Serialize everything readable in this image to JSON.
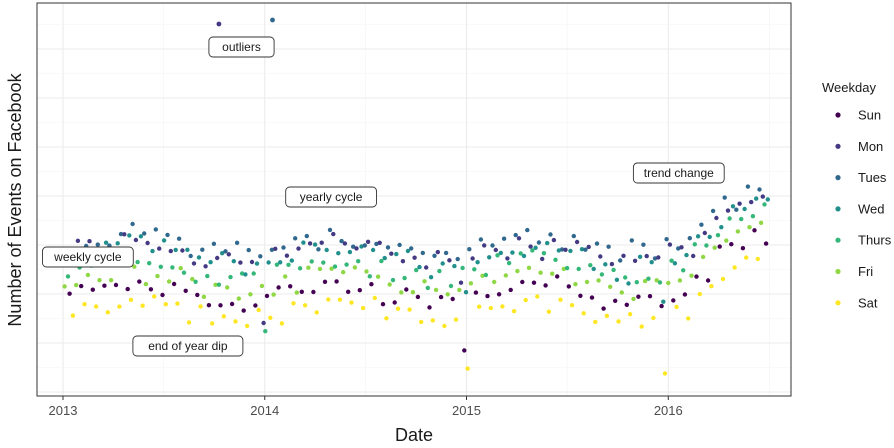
{
  "chart_data": {
    "type": "scatter",
    "title": "",
    "xlabel": "Date",
    "ylabel": "Number of Events on Facebook",
    "xlim": [
      "2012-11-15",
      "2016-08-10"
    ],
    "x_ticks": [
      "2013",
      "2014",
      "2015",
      "2016"
    ],
    "y_tick_labels_shown": false,
    "grid": true,
    "legend": {
      "title": "Weekday",
      "placement": "right",
      "entries": [
        {
          "name": "Sun",
          "color": "#440154"
        },
        {
          "name": "Mon",
          "color": "#443A83"
        },
        {
          "name": "Tues",
          "color": "#31688E"
        },
        {
          "name": "Wed",
          "color": "#21908C"
        },
        {
          "name": "Thurs",
          "color": "#35B779"
        },
        {
          "name": "Fri",
          "color": "#8FD744"
        },
        {
          "name": "Sat",
          "color": "#FDE725"
        }
      ]
    },
    "annotations": [
      {
        "label": "outliers",
        "date": "2013-11-20"
      },
      {
        "label": "yearly cycle",
        "date": "2014-05-01"
      },
      {
        "label": "weekly cycle",
        "date": "2013-02-15"
      },
      {
        "label": "end of year dip",
        "date": "2013-08-15"
      },
      {
        "label": "trend change",
        "date": "2016-01-20"
      }
    ],
    "highlight_points": [
      {
        "x": "2013-10-10",
        "series": "Mon"
      },
      {
        "x": "2014-01-15",
        "series": "Tues"
      }
    ]
  }
}
